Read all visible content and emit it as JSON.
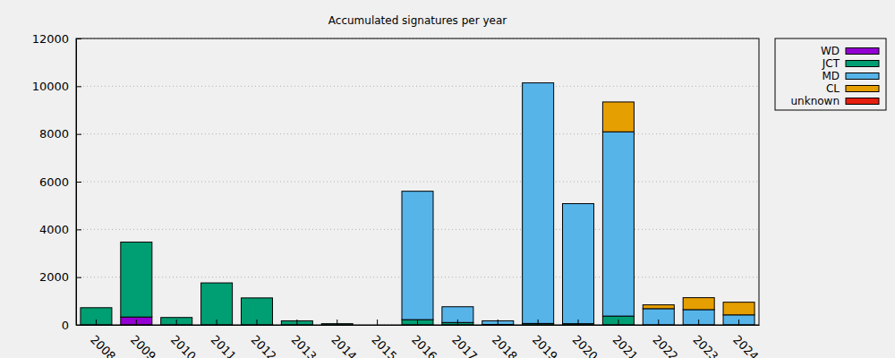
{
  "chart_data": {
    "type": "bar",
    "title": "Accumulated signatures per year",
    "categories": [
      "2008",
      "2009",
      "2010",
      "2011",
      "2012",
      "2013",
      "2014",
      "2015",
      "2016",
      "2017",
      "2018",
      "2019",
      "2020",
      "2021",
      "2022",
      "2023",
      "2024"
    ],
    "series": [
      {
        "name": "WD",
        "color": "#9400d3",
        "values": [
          0,
          330,
          0,
          0,
          0,
          0,
          0,
          0,
          0,
          0,
          0,
          0,
          0,
          0,
          0,
          0,
          0
        ]
      },
      {
        "name": "JCT",
        "color": "#009e73",
        "values": [
          720,
          3140,
          310,
          1760,
          1130,
          170,
          50,
          0,
          220,
          100,
          20,
          60,
          50,
          370,
          0,
          0,
          0
        ]
      },
      {
        "name": "MD",
        "color": "#56b4e9",
        "values": [
          0,
          0,
          0,
          0,
          0,
          0,
          0,
          0,
          5380,
          660,
          150,
          10080,
          5030,
          7720,
          680,
          640,
          420
        ]
      },
      {
        "name": "CL",
        "color": "#e69f00",
        "values": [
          0,
          0,
          0,
          0,
          0,
          0,
          0,
          0,
          0,
          0,
          0,
          0,
          0,
          1250,
          160,
          500,
          530
        ]
      },
      {
        "name": "unknown",
        "color": "#e51e10",
        "values": [
          0,
          0,
          0,
          0,
          0,
          0,
          0,
          0,
          0,
          0,
          0,
          0,
          0,
          0,
          0,
          0,
          0
        ]
      }
    ],
    "ylim": [
      0,
      12000
    ],
    "yticks": [
      0,
      2000,
      4000,
      6000,
      8000,
      10000,
      12000
    ],
    "stacked": true,
    "grid": true,
    "legend": "right"
  }
}
